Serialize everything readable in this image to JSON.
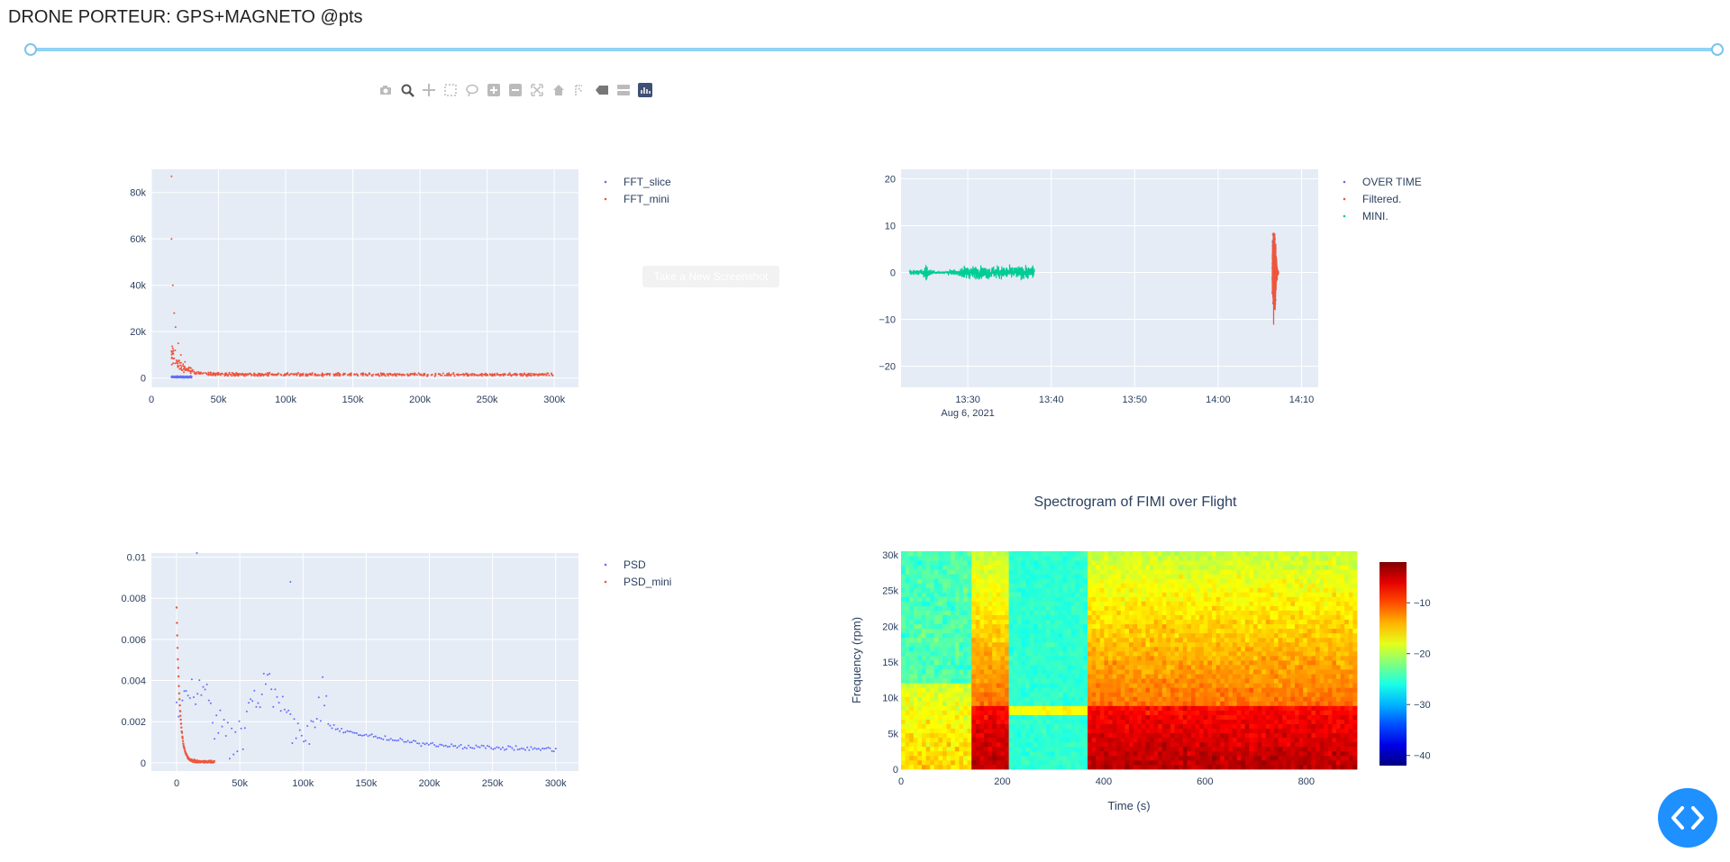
{
  "title": "DRONE PORTEUR: GPS+MAGNETO @pts",
  "tooltip": "Take a New Screenshot",
  "modebar_icons": [
    "camera-icon",
    "zoom-icon",
    "pan-icon",
    "box-select-icon",
    "lasso-icon",
    "zoom-in-icon",
    "zoom-out-icon",
    "autoscale-icon",
    "reset-axes-icon",
    "spike-lines-icon",
    "hover-closest-icon",
    "hover-compare-icon",
    "plotly-logo-icon"
  ],
  "colors": {
    "blue": "#636efa",
    "red": "#ef553b",
    "green": "#00cc96",
    "plot_bg": "#e5ecf6",
    "slider": "#92d3f5",
    "button": "#1e90ff"
  },
  "chart_data": [
    {
      "type": "scatter",
      "id": "fft",
      "series": [
        {
          "name": "FFT_slice",
          "color": "#636efa"
        },
        {
          "name": "FFT_mini",
          "color": "#ef553b"
        }
      ],
      "xrange": [
        0,
        318000
      ],
      "yrange": [
        -4000,
        90000
      ],
      "xticks": [
        0,
        50000,
        100000,
        150000,
        200000,
        250000,
        300000
      ],
      "xtick_labels": [
        "0",
        "50k",
        "100k",
        "150k",
        "200k",
        "250k",
        "300k"
      ],
      "yticks": [
        0,
        20000,
        40000,
        60000,
        80000
      ],
      "ytick_labels": [
        "0",
        "20k",
        "40k",
        "60k",
        "80k"
      ],
      "peaks": [
        [
          15000,
          87000
        ],
        [
          15000,
          60000
        ],
        [
          16000,
          40000
        ],
        [
          17000,
          28000
        ],
        [
          18000,
          22000
        ],
        [
          20000,
          15000
        ],
        [
          22000,
          10000
        ],
        [
          25000,
          7000
        ]
      ]
    },
    {
      "type": "scatter",
      "id": "time",
      "series": [
        {
          "name": "OVER TIME",
          "color": "#636efa"
        },
        {
          "name": "Filtered.",
          "color": "#ef553b"
        },
        {
          "name": "MINI.",
          "color": "#00cc96"
        }
      ],
      "x_start": "13:22",
      "x_end": "14:12",
      "yrange": [
        -24.5,
        22
      ],
      "xtick_labels": [
        "13:30",
        "13:40",
        "13:50",
        "14:00",
        "14:10"
      ],
      "xtick_minutes": [
        8,
        18,
        28,
        38,
        48
      ],
      "xdate_label": "Aug 6, 2021",
      "yticks": [
        -20,
        -10,
        0,
        10,
        20
      ],
      "ytick_labels": [
        "−20",
        "−10",
        "0",
        "10",
        "20"
      ],
      "mini_span_minutes": [
        1,
        16
      ],
      "burst_minute": 44.7
    },
    {
      "type": "scatter",
      "id": "psd",
      "series": [
        {
          "name": "PSD",
          "color": "#636efa"
        },
        {
          "name": "PSD_mini",
          "color": "#ef553b"
        }
      ],
      "xrange": [
        -20000,
        318000
      ],
      "yrange": [
        -0.0004,
        0.0102
      ],
      "xticks": [
        0,
        50000,
        100000,
        150000,
        200000,
        250000,
        300000
      ],
      "xtick_labels": [
        "0",
        "50k",
        "100k",
        "150k",
        "200k",
        "250k",
        "300k"
      ],
      "yticks": [
        0,
        0.002,
        0.004,
        0.006,
        0.008,
        0.01
      ],
      "ytick_labels": [
        "0",
        "0.002",
        "0.004",
        "0.006",
        "0.008",
        "0.01"
      ]
    },
    {
      "type": "heatmap",
      "id": "spectrogram",
      "title": "Spectrogram of FIMI over Flight",
      "xlabel": "Time (s)",
      "ylabel": "Frequency (rpm)",
      "xrange": [
        0,
        900
      ],
      "yrange": [
        0,
        30500
      ],
      "xticks": [
        0,
        200,
        400,
        600,
        800
      ],
      "xtick_labels": [
        "0",
        "200",
        "400",
        "600",
        "800"
      ],
      "yticks": [
        0,
        5000,
        10000,
        15000,
        20000,
        25000,
        30000
      ],
      "ytick_labels": [
        "0",
        "5k",
        "10k",
        "15k",
        "20k",
        "25k",
        "30k"
      ],
      "colorbar_range": [
        -42,
        -2
      ],
      "colorbar_ticks": [
        -10,
        -20,
        -30,
        -40
      ],
      "colorbar_tick_labels": [
        "−10",
        "−20",
        "−30",
        "−40"
      ],
      "segments": [
        {
          "t": [
            0,
            140
          ],
          "level": "mixed"
        },
        {
          "t": [
            140,
            215
          ],
          "level": "high"
        },
        {
          "t": [
            215,
            370
          ],
          "level": "low"
        },
        {
          "t": [
            370,
            900
          ],
          "level": "high"
        }
      ]
    }
  ]
}
